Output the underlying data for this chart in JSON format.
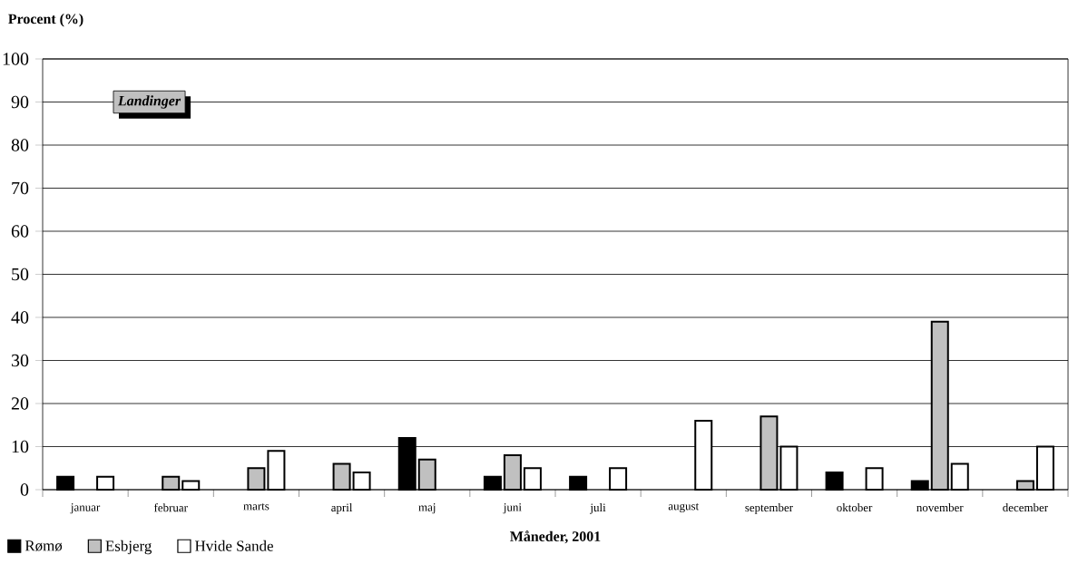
{
  "chart_data": {
    "type": "bar",
    "xlabel": "Måneder, 2001",
    "ylabel": "Procent (%)",
    "categories": [
      "januar",
      "februar",
      "marts",
      "april",
      "maj",
      "juni",
      "juli",
      "august",
      "september",
      "oktober",
      "november",
      "december"
    ],
    "series": [
      {
        "name": "Rømø",
        "color": "#000000",
        "values": [
          3,
          null,
          null,
          null,
          12,
          3,
          3,
          null,
          null,
          4,
          2,
          null
        ]
      },
      {
        "name": "Esbjerg",
        "color": "#c0c0c0",
        "values": [
          null,
          3,
          5,
          6,
          7,
          8,
          null,
          null,
          17,
          null,
          39,
          2
        ]
      },
      {
        "name": "Hvide Sande",
        "color": "#ffffff",
        "values": [
          3,
          2,
          9,
          4,
          null,
          5,
          5,
          16,
          10,
          5,
          6,
          10
        ]
      }
    ],
    "ylim": [
      0,
      100
    ],
    "yticks": [
      0,
      10,
      20,
      30,
      40,
      50,
      60,
      70,
      80,
      90,
      100
    ],
    "grid": "y",
    "legend": "bottom left",
    "annotations": [
      "Landinger"
    ]
  }
}
